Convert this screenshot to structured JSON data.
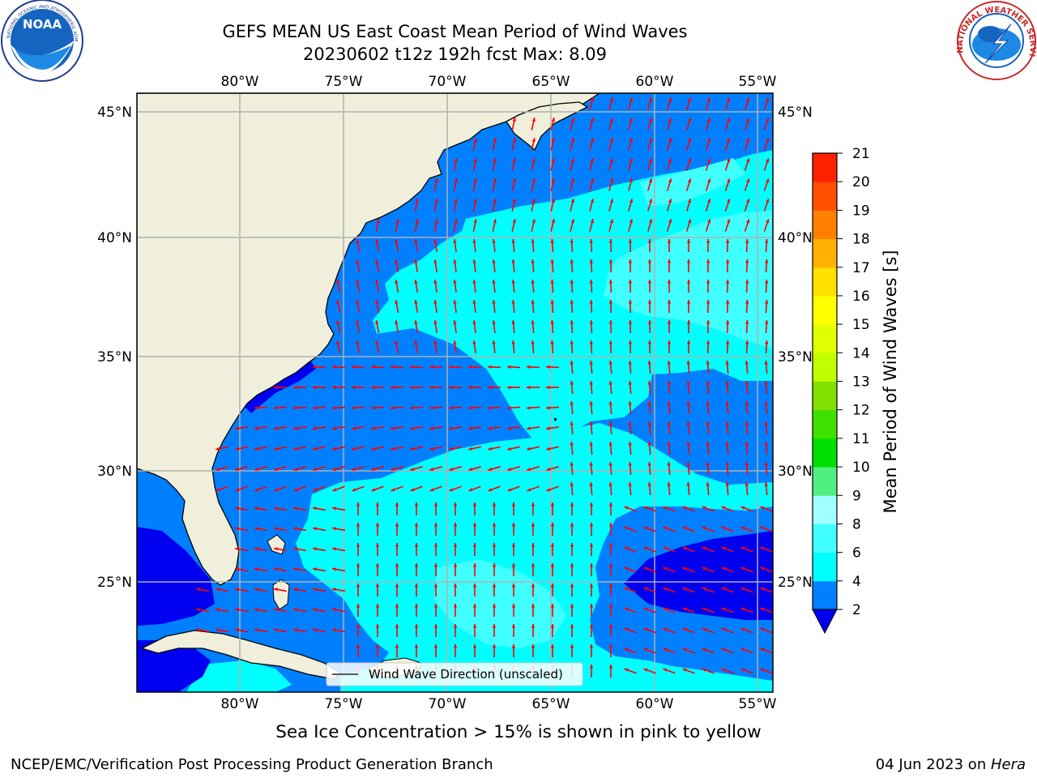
{
  "header": {
    "title": "GEFS MEAN US East Coast Mean Period of Wind Waves",
    "subtitle": "20230602 t12z 192h fcst   Max: 8.09"
  },
  "logos": {
    "left": "NOAA",
    "right": "NATIONAL WEATHER SERVICE",
    "left_ring": "NATIONAL OCEANIC AND ATMOSPHERIC ADMINISTRATION"
  },
  "map": {
    "lon_labels": [
      "80°W",
      "75°W",
      "70°W",
      "65°W",
      "60°W",
      "55°W"
    ],
    "lat_labels": [
      "45°N",
      "40°N",
      "35°N",
      "30°N",
      "25°N"
    ],
    "legend": "Wind Wave Direction (unscaled)",
    "colors": {
      "land": "#efefdc",
      "p2_4": "#0080ff",
      "p4_6": "#00ffff",
      "p6_8": "#40ffff",
      "below2": "#0000f0",
      "arrow": "#ff0000",
      "grid": "#b0b0b0"
    }
  },
  "colorbar": {
    "label": "Mean Period of Wind Waves [s]",
    "ticks": [
      "2",
      "4",
      "6",
      "8",
      "9",
      "10",
      "11",
      "12",
      "13",
      "14",
      "15",
      "16",
      "17",
      "18",
      "19",
      "20",
      "21"
    ],
    "colors": [
      "#0080ff",
      "#00ffff",
      "#40ffff",
      "#a0ffff",
      "#50f080",
      "#00e000",
      "#40e000",
      "#80e000",
      "#c0ff00",
      "#e0ff00",
      "#ffff00",
      "#ffe000",
      "#ffb000",
      "#ff8000",
      "#ff5000",
      "#ff2000",
      "#ff0000"
    ],
    "extend_color": "#0000f0"
  },
  "caption": "Sea Ice Concentration > 15% is shown in pink to yellow",
  "footer": {
    "left": "NCEP/EMC/Verification Post Processing Product Generation Branch",
    "right_date": "04 Jun 2023 on ",
    "right_machine": "Hera"
  }
}
